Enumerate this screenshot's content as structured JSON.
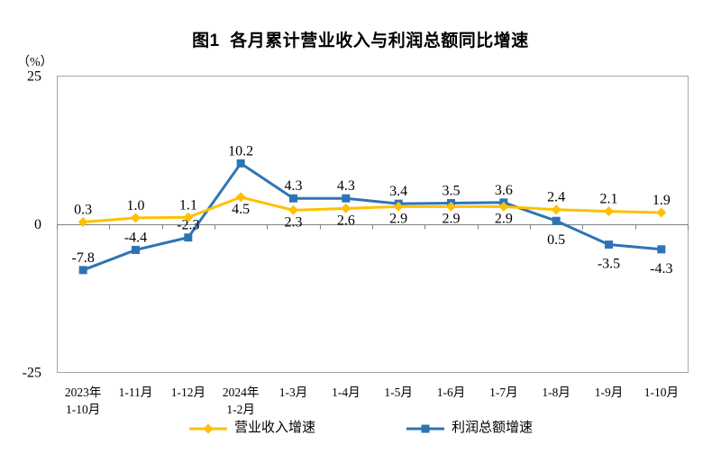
{
  "title": "图1  各月累计营业收入与利润总额同比增速",
  "y_axis_unit": "（%）",
  "colors": {
    "revenue": "#FFC000",
    "profit": "#2E74B5",
    "plot_border": "#A6A6A6",
    "zero_line": "#808080",
    "text": "#000000"
  },
  "legend": {
    "items": [
      {
        "label": "营业收入增速",
        "series_key": "revenue",
        "marker": "diamond"
      },
      {
        "label": "利润总额增速",
        "series_key": "profit",
        "marker": "square"
      }
    ]
  },
  "chart_data": {
    "type": "line",
    "title": "图1  各月累计营业收入与利润总额同比增速",
    "ylabel": "（%）",
    "xlabel": "",
    "ylim": [
      -25,
      25
    ],
    "yticks": [
      25,
      0,
      -25
    ],
    "grid": false,
    "legend_position": "bottom",
    "categories": [
      [
        "2023年",
        "1-10月"
      ],
      "1-11月",
      "1-12月",
      [
        "2024年",
        "1-2月"
      ],
      "1-3月",
      "1-4月",
      "1-5月",
      "1-6月",
      "1-7月",
      "1-8月",
      "1-9月",
      "1-10月"
    ],
    "series": [
      {
        "name": "营业收入增速",
        "color_key": "revenue",
        "marker": "diamond",
        "values": [
          0.3,
          1.0,
          1.1,
          4.5,
          2.3,
          2.6,
          2.9,
          2.9,
          2.9,
          2.4,
          2.1,
          1.9
        ],
        "label_pos": [
          "above",
          "above",
          "above",
          "below",
          "below",
          "below",
          "below",
          "below",
          "below",
          "above",
          "above",
          "above"
        ]
      },
      {
        "name": "利润总额增速",
        "color_key": "profit",
        "marker": "square",
        "values": [
          -7.8,
          -4.4,
          -2.3,
          10.2,
          4.3,
          4.3,
          3.4,
          3.5,
          3.6,
          0.5,
          -3.5,
          -4.3
        ],
        "label_pos": [
          "above",
          "above",
          "above",
          "above",
          "above",
          "above",
          "above",
          "above",
          "above",
          "below",
          "below",
          "below"
        ]
      }
    ]
  }
}
